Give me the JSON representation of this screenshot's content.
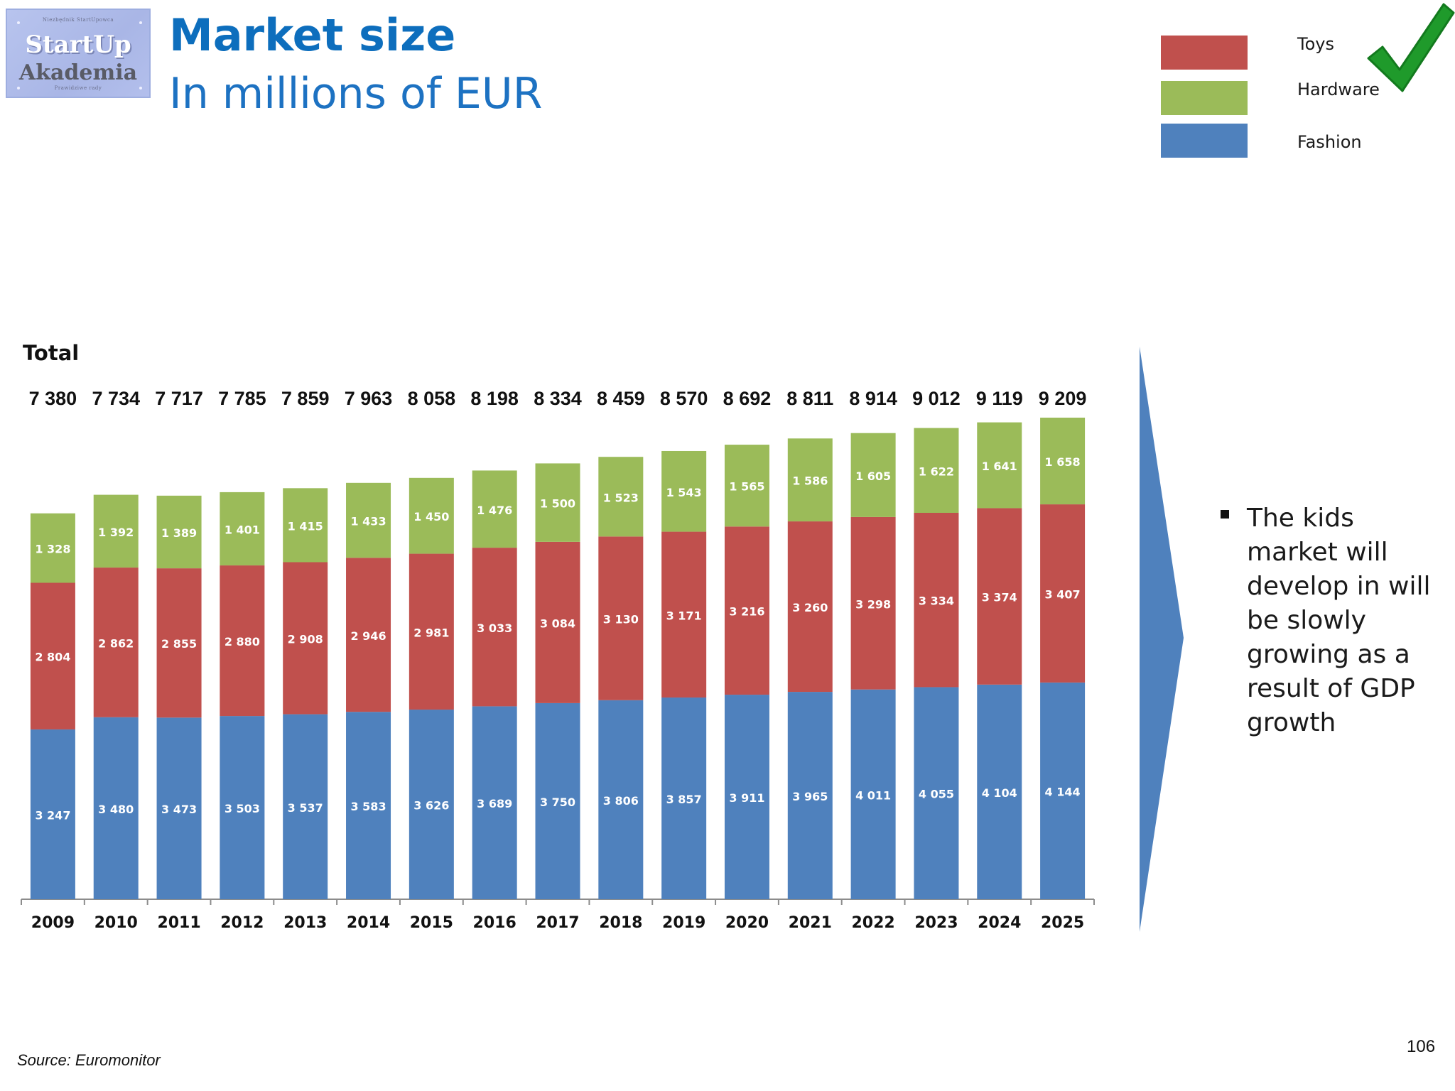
{
  "logo": {
    "top_text": "Niezbędnik StartUpowca",
    "line1": "StartUp",
    "line2": "Akademia",
    "bottom_text": "Prawidziwe rady"
  },
  "header": {
    "title": "Market size",
    "subtitle": "In millions of EUR"
  },
  "legend": [
    {
      "label": "Toys",
      "color": "#c0504d"
    },
    {
      "label": "Hardware",
      "color": "#9bbb59"
    },
    {
      "label": "Fashion",
      "color": "#4f81bd"
    }
  ],
  "check_icon": "green-checkmark-icon",
  "chart_data": {
    "type": "bar",
    "stacked": true,
    "total_label": "Total",
    "categories": [
      "2009",
      "2010",
      "2011",
      "2012",
      "2013",
      "2014",
      "2015",
      "2016",
      "2017",
      "2018",
      "2019",
      "2020",
      "2021",
      "2022",
      "2023",
      "2024",
      "2025"
    ],
    "totals": [
      "7 380",
      "7 734",
      "7 717",
      "7 785",
      "7 859",
      "7 963",
      "8 058",
      "8 198",
      "8 334",
      "8 459",
      "8 570",
      "8 692",
      "8 811",
      "8 914",
      "9 012",
      "9 119",
      "9 209"
    ],
    "series": [
      {
        "name": "Fashion",
        "color": "#4f81bd",
        "values": [
          3247,
          3480,
          3473,
          3503,
          3537,
          3583,
          3626,
          3689,
          3750,
          3806,
          3857,
          3911,
          3965,
          4011,
          4055,
          4104,
          4144
        ]
      },
      {
        "name": "Toys",
        "color": "#c0504d",
        "values": [
          2804,
          2862,
          2855,
          2880,
          2908,
          2946,
          2981,
          3033,
          3084,
          3130,
          3171,
          3216,
          3260,
          3298,
          3334,
          3374,
          3407
        ]
      },
      {
        "name": "Hardware",
        "color": "#9bbb59",
        "values": [
          1328,
          1392,
          1389,
          1401,
          1415,
          1433,
          1450,
          1476,
          1500,
          1523,
          1543,
          1565,
          1586,
          1605,
          1622,
          1641,
          1658
        ]
      }
    ],
    "ylim": [
      0,
      9209
    ],
    "grid": false
  },
  "colors": {
    "arrow": "#4f81bd"
  },
  "note": {
    "text": "The kids market will develop in will be slowly growing as a result of GDP growth"
  },
  "source": "Source: Euromonitor",
  "page_number": "106"
}
